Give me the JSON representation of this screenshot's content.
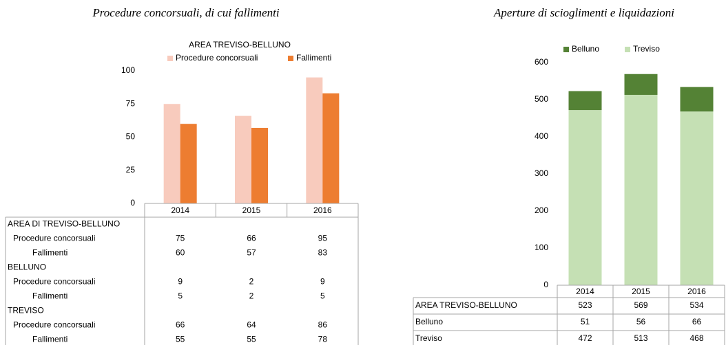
{
  "chart_data": [
    {
      "type": "bar",
      "title": "Procedure concorsuali, di cui fallimenti",
      "subtitle": "AREA TREVISO-BELLUNO",
      "categories": [
        "2014",
        "2015",
        "2016"
      ],
      "series": [
        {
          "name": "Procedure concorsuali",
          "color": "#f8cbbd",
          "values": [
            75,
            66,
            95
          ]
        },
        {
          "name": "Fallimenti",
          "color": "#ed7d31",
          "values": [
            60,
            57,
            83
          ]
        }
      ],
      "ylim": [
        0,
        100
      ],
      "yticks": [
        0,
        25,
        50,
        75,
        100
      ],
      "table": {
        "groups": [
          {
            "name": "AREA DI TREVISO-BELLUNO",
            "rows": [
              {
                "label": "Procedure concorsuali",
                "values": [
                  75,
                  66,
                  95
                ]
              },
              {
                "label": "Fallimenti",
                "values": [
                  60,
                  57,
                  83
                ]
              }
            ]
          },
          {
            "name": "BELLUNO",
            "rows": [
              {
                "label": "Procedure concorsuali",
                "values": [
                  9,
                  2,
                  9
                ]
              },
              {
                "label": "Fallimenti",
                "values": [
                  5,
                  2,
                  5
                ]
              }
            ]
          },
          {
            "name": "TREVISO",
            "rows": [
              {
                "label": "Procedure concorsuali",
                "values": [
                  66,
                  64,
                  86
                ]
              },
              {
                "label": "Fallimenti",
                "values": [
                  55,
                  55,
                  78
                ]
              }
            ]
          }
        ]
      }
    },
    {
      "type": "stacked_bar",
      "title": "Aperture di scioglimenti e liquidazioni",
      "categories": [
        "2014",
        "2015",
        "2016"
      ],
      "series": [
        {
          "name": "Belluno",
          "color": "#548235",
          "values": [
            51,
            56,
            66
          ]
        },
        {
          "name": "Treviso",
          "color": "#c5e0b4",
          "values": [
            472,
            513,
            468
          ]
        }
      ],
      "ylim": [
        0,
        600
      ],
      "yticks": [
        0,
        100,
        200,
        300,
        400,
        500,
        600
      ],
      "table": {
        "total": {
          "label": "AREA TREVISO-BELLUNO",
          "values": [
            523,
            569,
            534
          ]
        }
      }
    }
  ]
}
